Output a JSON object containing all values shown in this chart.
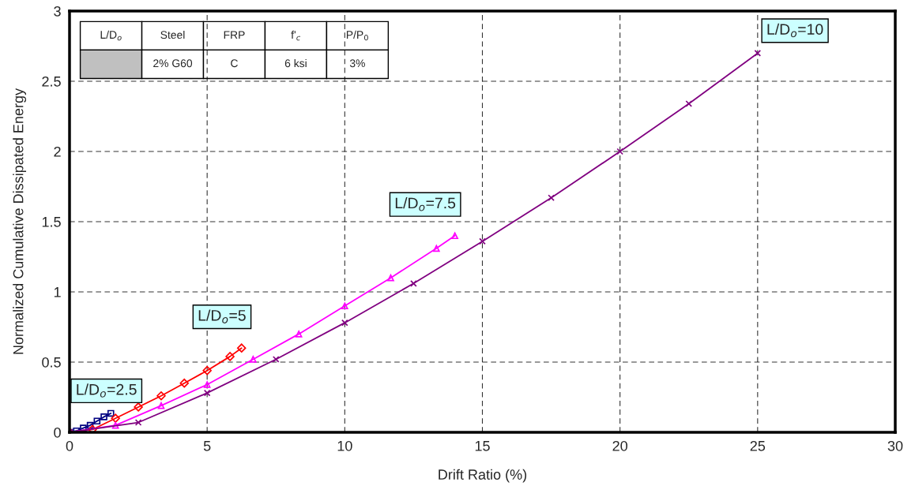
{
  "chart_data": {
    "type": "line",
    "xlabel": "Drift Ratio (%)",
    "ylabel": "Normalized Cumulative Dissipated Energy",
    "xlim": [
      0,
      30
    ],
    "xticks": [
      0,
      5,
      10,
      15,
      20,
      25,
      30
    ],
    "ylim": [
      0,
      3
    ],
    "yticks": [
      0,
      0.5,
      1,
      1.5,
      2,
      2.5,
      3
    ],
    "grid": true,
    "legend": false,
    "line_style": "solid",
    "annotations": [
      "L/D$_{o}$",
      "Steel",
      "FRP",
      "f'$_{c}$",
      "P/P$_{0}$",
      "2% G60",
      "C",
      "6 ksi",
      "3%"
    ],
    "series": [
      {
        "name": "L/D$_{o}$=2.5",
        "color": "#000080",
        "marker": "square",
        "x": [
          0,
          0.25,
          0.5,
          0.75,
          1.0,
          1.25,
          1.5
        ],
        "values": [
          0,
          0.01,
          0.03,
          0.05,
          0.08,
          0.11,
          0.135
        ]
      },
      {
        "name": "L/D$_{o}$=5",
        "color": "#ff0000",
        "marker": "diamond",
        "x": [
          0,
          0.83,
          1.67,
          2.5,
          3.33,
          4.17,
          5,
          5.83,
          6.25
        ],
        "values": [
          0,
          0.02,
          0.1,
          0.18,
          0.26,
          0.35,
          0.44,
          0.54,
          0.6
        ]
      },
      {
        "name": "L/D$_{o}$=7.5",
        "color": "#ff00ff",
        "marker": "triangle",
        "x": [
          0,
          1.67,
          3.33,
          5,
          6.67,
          8.33,
          10,
          11.67,
          13.33,
          14
        ],
        "values": [
          0,
          0.05,
          0.19,
          0.34,
          0.52,
          0.7,
          0.9,
          1.1,
          1.31,
          1.4
        ]
      },
      {
        "name": "L/D$_{o}$=10",
        "color": "#800080",
        "marker": "cross",
        "x": [
          0,
          2.5,
          5,
          7.5,
          10,
          12.5,
          15,
          17.5,
          20,
          22.5,
          25
        ],
        "values": [
          0,
          0.07,
          0.28,
          0.52,
          0.78,
          1.06,
          1.36,
          1.67,
          2.0,
          2.34,
          2.7
        ]
      }
    ]
  }
}
